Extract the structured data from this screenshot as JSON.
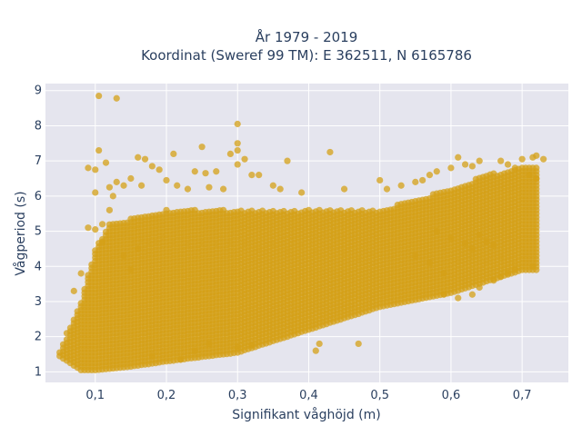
{
  "chart_data": {
    "type": "scatter",
    "title_line1": "År 1979 - 2019",
    "title_line2": "Koordinat (Sweref 99 TM): E 362511, N 6165786",
    "xlabel": "Signifikant våghöjd (m)",
    "ylabel": "Vågperiod (s)",
    "xlim": [
      0.03,
      0.765
    ],
    "ylim": [
      0.7,
      9.2
    ],
    "x_ticks": [
      0.1,
      0.2,
      0.3,
      0.4,
      0.5,
      0.6,
      0.7
    ],
    "x_tick_labels": [
      "0,1",
      "0,2",
      "0,3",
      "0,4",
      "0,5",
      "0,6",
      "0,7"
    ],
    "y_ticks": [
      1,
      2,
      3,
      4,
      5,
      6,
      7,
      8,
      9
    ],
    "y_tick_labels": [
      "1",
      "2",
      "3",
      "4",
      "5",
      "6",
      "7",
      "8",
      "9"
    ],
    "grid": true,
    "colors": {
      "marker": "#d4a017",
      "plot_bg": "#e5e5ee",
      "grid": "#ffffff",
      "text": "#2a3f5f"
    },
    "series": [
      {
        "x_start": 0.05,
        "x_end": 0.72,
        "x_step": 0.005,
        "lower_bound": [
          [
            0.05,
            1.45
          ],
          [
            0.08,
            1.05
          ],
          [
            0.1,
            1.05
          ],
          [
            0.15,
            1.15
          ],
          [
            0.2,
            1.3
          ],
          [
            0.3,
            1.55
          ],
          [
            0.4,
            2.2
          ],
          [
            0.5,
            2.85
          ],
          [
            0.6,
            3.25
          ],
          [
            0.7,
            3.9
          ]
        ],
        "upper_bound": [
          [
            0.05,
            1.6
          ],
          [
            0.06,
            2.0
          ],
          [
            0.08,
            3.0
          ],
          [
            0.1,
            4.5
          ],
          [
            0.12,
            5.2
          ],
          [
            0.2,
            5.6
          ],
          [
            0.3,
            5.6
          ],
          [
            0.4,
            5.6
          ],
          [
            0.5,
            5.6
          ],
          [
            0.6,
            6.2
          ],
          [
            0.65,
            6.6
          ],
          [
            0.7,
            6.8
          ]
        ],
        "outliers": [
          [
            0.105,
            8.85
          ],
          [
            0.13,
            8.78
          ],
          [
            0.3,
            8.05
          ],
          [
            0.3,
            7.5
          ],
          [
            0.3,
            7.3
          ],
          [
            0.105,
            7.3
          ],
          [
            0.09,
            6.8
          ],
          [
            0.1,
            6.75
          ],
          [
            0.115,
            6.95
          ],
          [
            0.16,
            7.1
          ],
          [
            0.17,
            7.05
          ],
          [
            0.18,
            6.85
          ],
          [
            0.21,
            7.2
          ],
          [
            0.25,
            7.4
          ],
          [
            0.29,
            7.2
          ],
          [
            0.3,
            6.9
          ],
          [
            0.31,
            7.05
          ],
          [
            0.32,
            6.6
          ],
          [
            0.33,
            6.6
          ],
          [
            0.37,
            7.0
          ],
          [
            0.43,
            7.25
          ],
          [
            0.24,
            6.7
          ],
          [
            0.255,
            6.65
          ],
          [
            0.27,
            6.7
          ],
          [
            0.19,
            6.75
          ],
          [
            0.2,
            6.45
          ],
          [
            0.215,
            6.3
          ],
          [
            0.23,
            6.2
          ],
          [
            0.26,
            6.25
          ],
          [
            0.28,
            6.2
          ],
          [
            0.35,
            6.3
          ],
          [
            0.36,
            6.2
          ],
          [
            0.39,
            6.1
          ],
          [
            0.45,
            6.2
          ],
          [
            0.12,
            6.25
          ],
          [
            0.1,
            6.1
          ],
          [
            0.13,
            6.4
          ],
          [
            0.14,
            6.3
          ],
          [
            0.15,
            6.5
          ],
          [
            0.165,
            6.3
          ],
          [
            0.41,
            1.6
          ],
          [
            0.415,
            1.8
          ],
          [
            0.47,
            1.8
          ],
          [
            0.32,
            1.75
          ],
          [
            0.3,
            1.7
          ],
          [
            0.26,
            1.8
          ],
          [
            0.24,
            1.6
          ],
          [
            0.22,
            1.35
          ],
          [
            0.18,
            1.45
          ],
          [
            0.11,
            4.7
          ],
          [
            0.1,
            5.05
          ],
          [
            0.09,
            5.1
          ],
          [
            0.11,
            5.2
          ],
          [
            0.07,
            3.3
          ],
          [
            0.08,
            3.8
          ],
          [
            0.06,
            2.1
          ],
          [
            0.5,
            6.45
          ],
          [
            0.51,
            6.2
          ],
          [
            0.53,
            6.3
          ],
          [
            0.55,
            6.4
          ],
          [
            0.56,
            6.45
          ],
          [
            0.57,
            6.6
          ],
          [
            0.58,
            6.7
          ],
          [
            0.6,
            6.8
          ],
          [
            0.61,
            7.1
          ],
          [
            0.62,
            6.9
          ],
          [
            0.63,
            6.85
          ],
          [
            0.64,
            7.0
          ],
          [
            0.67,
            7.0
          ],
          [
            0.68,
            6.9
          ],
          [
            0.69,
            6.8
          ],
          [
            0.7,
            7.05
          ],
          [
            0.715,
            7.1
          ],
          [
            0.72,
            7.15
          ],
          [
            0.73,
            7.05
          ],
          [
            0.72,
            6.5
          ],
          [
            0.71,
            6.6
          ],
          [
            0.55,
            4.3
          ],
          [
            0.57,
            4.1
          ],
          [
            0.59,
            3.8
          ],
          [
            0.6,
            4.8
          ],
          [
            0.62,
            4.65
          ],
          [
            0.63,
            4.5
          ],
          [
            0.64,
            4.9
          ],
          [
            0.65,
            4.7
          ],
          [
            0.66,
            4.6
          ],
          [
            0.58,
            5.0
          ],
          [
            0.59,
            3.2
          ],
          [
            0.61,
            3.1
          ],
          [
            0.63,
            3.2
          ],
          [
            0.64,
            3.4
          ],
          [
            0.66,
            3.6
          ],
          [
            0.67,
            3.7
          ],
          [
            0.68,
            3.8
          ],
          [
            0.69,
            3.9
          ],
          [
            0.715,
            4.0
          ],
          [
            0.14,
            4.3
          ],
          [
            0.15,
            3.9
          ],
          [
            0.16,
            4.5
          ],
          [
            0.12,
            5.6
          ],
          [
            0.125,
            6.0
          ]
        ]
      }
    ]
  }
}
